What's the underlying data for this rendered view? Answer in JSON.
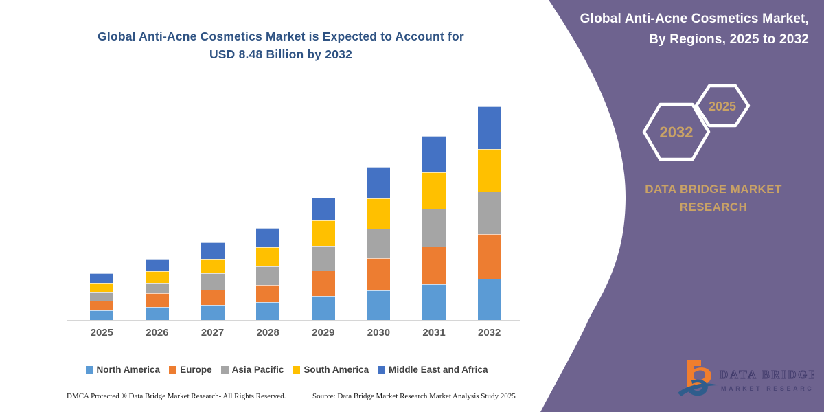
{
  "page": {
    "purple": "#6E638F",
    "gold": "#C9A266",
    "title_color": "#2F5383"
  },
  "left": {
    "title_line1": "Global Anti-Acne Cosmetics Market is Expected to Account for",
    "title_line2": "USD 8.48 Billion by 2032",
    "footer_dmca": "DMCA Protected ® Data Bridge Market Research-  All Rights Reserved.",
    "footer_source": "Source: Data Bridge Market Research  Market Analysis Study 2025"
  },
  "chart_data": {
    "type": "bar",
    "stacked": true,
    "title": "Global Anti-Acne Cosmetics Market is Expected to Account for USD 8.48 Billion by 2032",
    "unit": "USD Billion",
    "categories": [
      "2025",
      "2026",
      "2027",
      "2028",
      "2029",
      "2030",
      "2031",
      "2032"
    ],
    "series": [
      {
        "name": "North America",
        "color": "#5B9BD5",
        "values": [
          0.38,
          0.52,
          0.6,
          0.71,
          0.95,
          1.17,
          1.42,
          1.64
        ]
      },
      {
        "name": "Europe",
        "color": "#ED7D31",
        "values": [
          0.38,
          0.55,
          0.6,
          0.68,
          1.01,
          1.28,
          1.5,
          1.77
        ]
      },
      {
        "name": "Asia Pacific",
        "color": "#A5A5A5",
        "values": [
          0.35,
          0.41,
          0.65,
          0.74,
          0.98,
          1.17,
          1.5,
          1.69
        ]
      },
      {
        "name": "South America",
        "color": "#FFC000",
        "values": [
          0.35,
          0.46,
          0.57,
          0.76,
          1.01,
          1.2,
          1.45,
          1.69
        ]
      },
      {
        "name": "Middle East and Africa",
        "color": "#4472C4",
        "values": [
          0.38,
          0.49,
          0.65,
          0.76,
          0.9,
          1.25,
          1.44,
          1.69
        ]
      }
    ],
    "totals": [
      1.84,
      2.43,
      3.07,
      3.65,
      4.85,
      6.07,
      7.31,
      8.48
    ],
    "ylim": [
      0,
      8.48
    ],
    "grid": false,
    "y_axis_visible": false,
    "legend_position": "bottom"
  },
  "right_panel": {
    "title_line1": "Global Anti-Acne Cosmetics Market,",
    "title_line2": "By Regions, 2025 to 2032",
    "hexagon_back_label": "2032",
    "hexagon_front_label": "2025",
    "brand_line1": "DATA BRIDGE MARKET",
    "brand_line2": "RESEARCH",
    "logo_line1": "DATA BRIDGE",
    "logo_line2": "MARKET RESEARCH"
  }
}
